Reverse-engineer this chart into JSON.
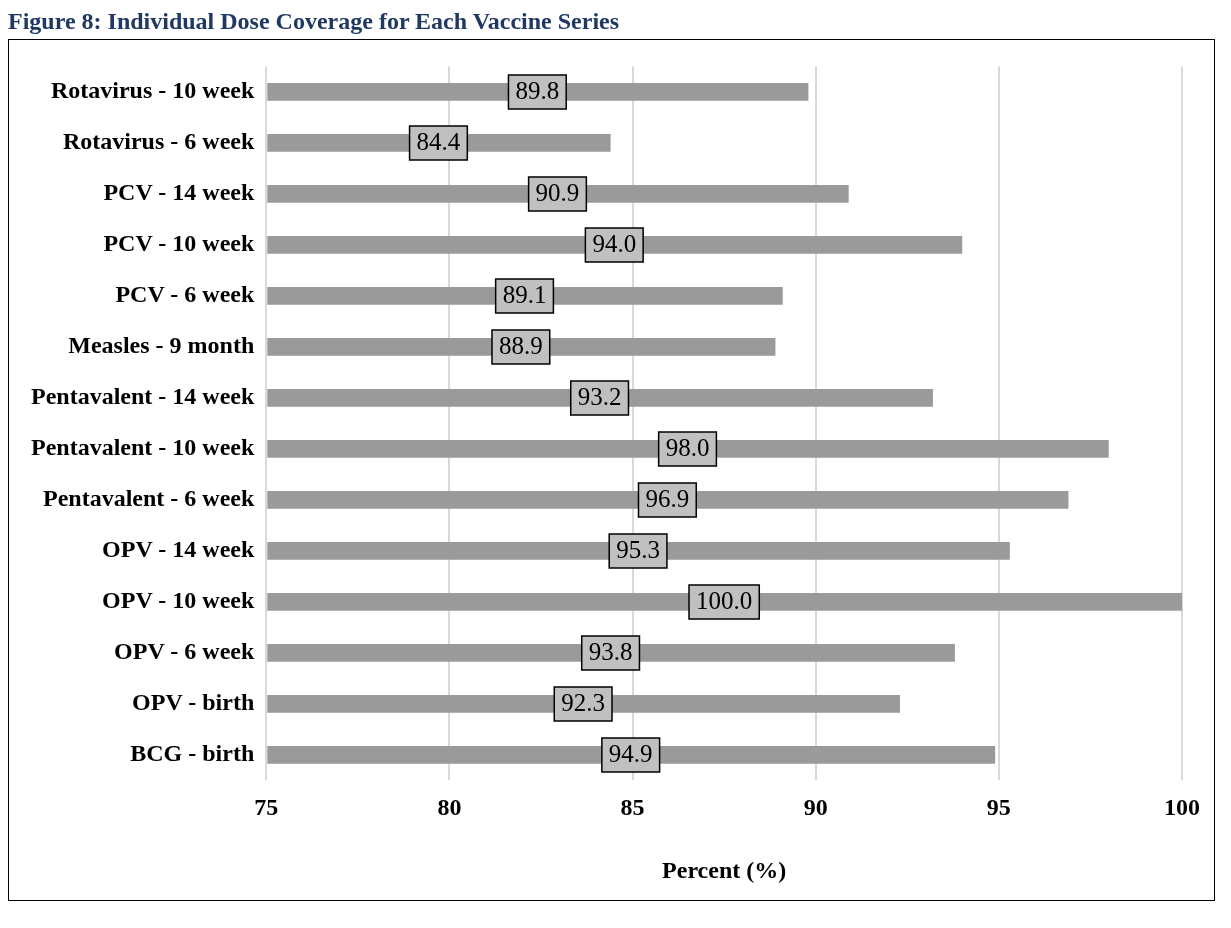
{
  "chart_data": {
    "type": "bar",
    "orientation": "horizontal",
    "title": "Figure 8: Individual Dose Coverage for Each Vaccine Series",
    "xlabel": "Percent (%)",
    "categories": [
      "Rotavirus - 10 week",
      "Rotavirus - 6 week",
      "PCV - 14 week",
      "PCV - 10 week",
      "PCV - 6 week",
      "Measles - 9 month",
      "Pentavalent - 14 week",
      "Pentavalent - 10 week",
      "Pentavalent - 6 week",
      "OPV - 14 week",
      "OPV - 10 week",
      "OPV - 6 week",
      "OPV - birth",
      "BCG - birth"
    ],
    "values": [
      89.8,
      84.4,
      90.9,
      94.0,
      89.1,
      88.9,
      93.2,
      98.0,
      96.9,
      95.3,
      100.0,
      93.8,
      92.3,
      94.9
    ],
    "value_labels": [
      "89.8",
      "84.4",
      "90.9",
      "94.0",
      "89.1",
      "88.9",
      "93.2",
      "98.0",
      "96.9",
      "95.3",
      "100.0",
      "93.8",
      "92.3",
      "94.9"
    ],
    "color": "#9a9a9a",
    "xlim": [
      75,
      100
    ],
    "xticks": [
      75,
      80,
      85,
      90,
      95,
      100
    ],
    "grid": "x",
    "legend": false
  }
}
